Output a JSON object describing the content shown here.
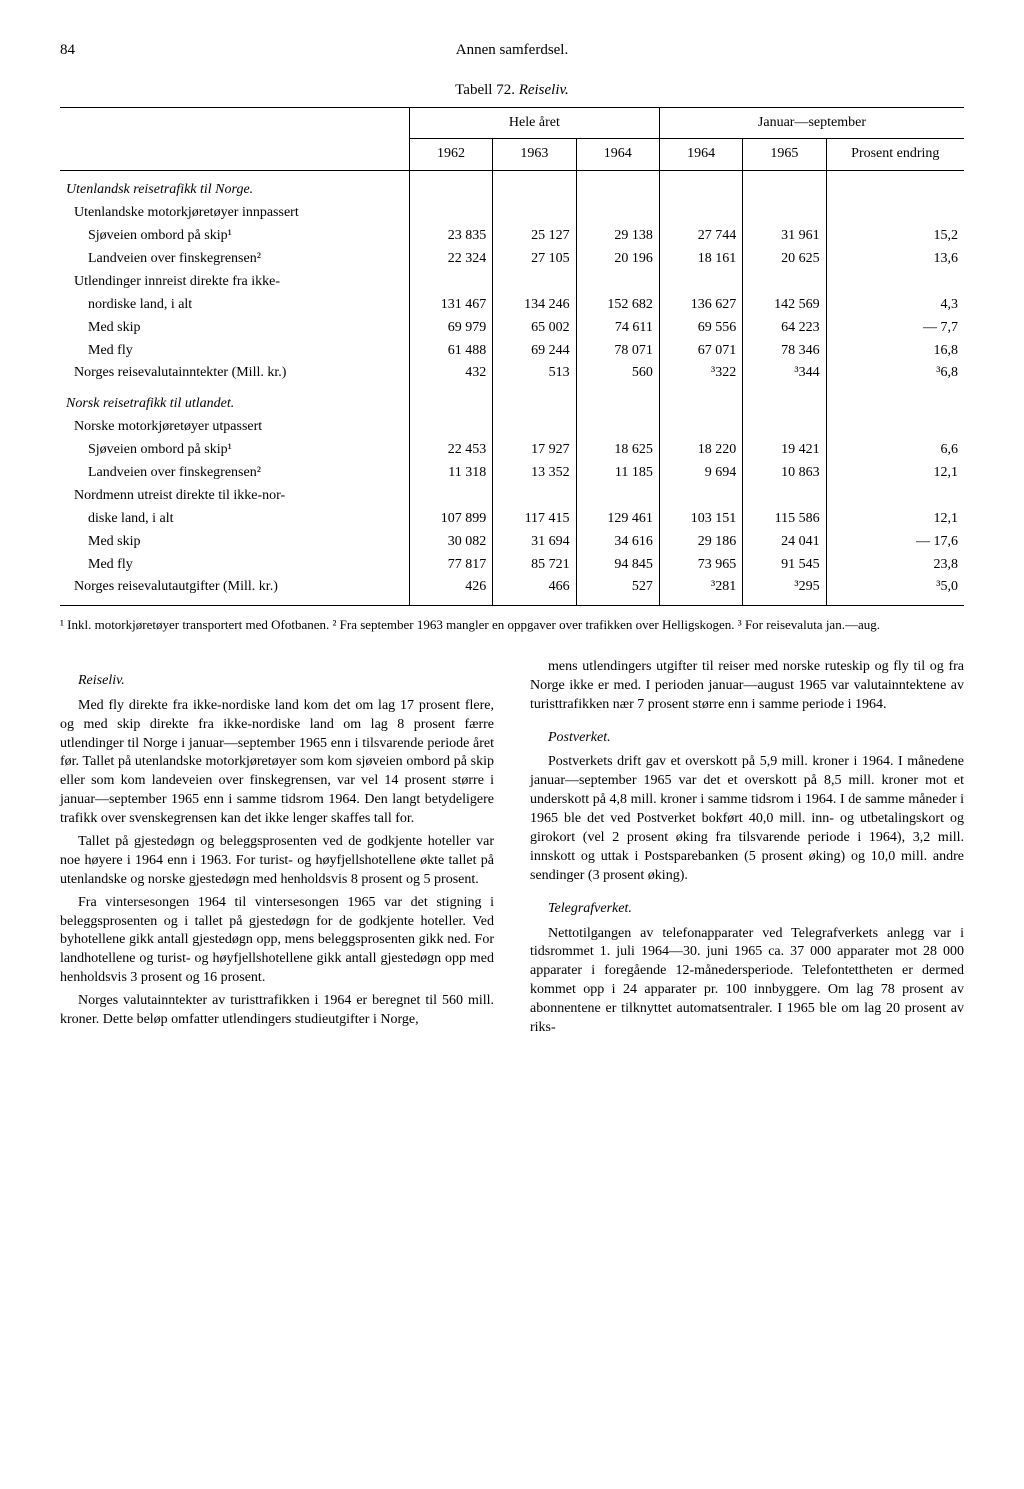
{
  "page": {
    "number": "84",
    "running_title": "Annen samferdsel."
  },
  "table": {
    "caption_prefix": "Tabell 72.",
    "caption_title": "Reiseliv.",
    "headers": {
      "group1": "Hele året",
      "group2": "Januar—september",
      "y1962": "1962",
      "y1963": "1963",
      "y1964a": "1964",
      "y1964b": "1964",
      "y1965": "1965",
      "prosent": "Prosent endring"
    },
    "section1": "Utenlandsk reisetrafikk til Norge.",
    "rows1": [
      {
        "label": "Utenlandske motorkjøretøyer innpassert",
        "indent": 1,
        "vals": [
          "",
          "",
          "",
          "",
          "",
          ""
        ]
      },
      {
        "label": "Sjøveien ombord på skip¹",
        "indent": 2,
        "vals": [
          "23 835",
          "25 127",
          "29 138",
          "27 744",
          "31 961",
          "15,2"
        ]
      },
      {
        "label": "Landveien over finskegrensen²",
        "indent": 2,
        "vals": [
          "22 324",
          "27 105",
          "20 196",
          "18 161",
          "20 625",
          "13,6"
        ]
      },
      {
        "label": "Utlendinger innreist direkte fra ikke-",
        "indent": 1,
        "vals": [
          "",
          "",
          "",
          "",
          "",
          ""
        ]
      },
      {
        "label": "nordiske land, i alt",
        "indent": 2,
        "vals": [
          "131 467",
          "134 246",
          "152 682",
          "136 627",
          "142 569",
          "4,3"
        ]
      },
      {
        "label": "Med skip",
        "indent": 2,
        "vals": [
          "69 979",
          "65 002",
          "74 611",
          "69 556",
          "64 223",
          "7,7"
        ],
        "neg": true
      },
      {
        "label": "Med fly",
        "indent": 2,
        "vals": [
          "61 488",
          "69 244",
          "78 071",
          "67 071",
          "78 346",
          "16,8"
        ]
      },
      {
        "label": "Norges reisevalutainntekter (Mill. kr.)",
        "indent": 1,
        "vals": [
          "432",
          "513",
          "560",
          "³322",
          "³344",
          "³6,8"
        ]
      }
    ],
    "section2": "Norsk reisetrafikk til utlandet.",
    "rows2": [
      {
        "label": "Norske motorkjøretøyer utpassert",
        "indent": 1,
        "vals": [
          "",
          "",
          "",
          "",
          "",
          ""
        ]
      },
      {
        "label": "Sjøveien ombord på skip¹",
        "indent": 2,
        "vals": [
          "22 453",
          "17 927",
          "18 625",
          "18 220",
          "19 421",
          "6,6"
        ]
      },
      {
        "label": "Landveien over finskegrensen²",
        "indent": 2,
        "vals": [
          "11 318",
          "13 352",
          "11 185",
          "9 694",
          "10 863",
          "12,1"
        ]
      },
      {
        "label": "Nordmenn utreist direkte til ikke-nor-",
        "indent": 1,
        "vals": [
          "",
          "",
          "",
          "",
          "",
          ""
        ]
      },
      {
        "label": "diske land, i alt",
        "indent": 2,
        "vals": [
          "107 899",
          "117 415",
          "129 461",
          "103 151",
          "115 586",
          "12,1"
        ]
      },
      {
        "label": "Med skip",
        "indent": 2,
        "vals": [
          "30 082",
          "31 694",
          "34 616",
          "29 186",
          "24 041",
          "17,6"
        ],
        "neg": true
      },
      {
        "label": "Med fly",
        "indent": 2,
        "vals": [
          "77 817",
          "85 721",
          "94 845",
          "73 965",
          "91 545",
          "23,8"
        ]
      },
      {
        "label": "Norges reisevalutautgifter   (Mill. kr.)",
        "indent": 1,
        "vals": [
          "426",
          "466",
          "527",
          "³281",
          "³295",
          "³5,0"
        ]
      }
    ],
    "footnote": "¹ Inkl. motorkjøretøyer transportert med Ofotbanen. ² Fra september 1963 mangler en oppgaver over trafikken over Helligskogen. ³ For reisevaluta jan.—aug."
  },
  "body": {
    "left": {
      "h1": "Reiseliv.",
      "p1": "Med fly direkte fra ikke-nordiske land kom det om lag 17 prosent flere, og med skip direkte fra ikke-nordiske land om lag 8 prosent færre utlendinger til Norge i januar—september 1965 enn i tilsvarende periode året før. Tallet på utenlandske motorkjøretøyer som kom sjøveien ombord på skip eller som kom landeveien over finskegrensen, var vel 14 prosent større i januar—september 1965 enn i samme tidsrom 1964. Den langt betydeligere trafikk over svenskegrensen kan det ikke lenger skaffes tall for.",
      "p2": "Tallet på gjestedøgn og beleggsprosenten ved de godkjente hoteller var noe høyere i 1964 enn i 1963. For turist- og høyfjellshotellene økte tallet på utenlandske og norske gjestedøgn med henholdsvis 8 prosent og 5 prosent.",
      "p3": "Fra vintersesongen 1964 til vintersesongen 1965 var det stigning i beleggsprosenten og i tallet på gjestedøgn for de godkjente hoteller. Ved byhotellene gikk antall gjestedøgn opp, mens beleggsprosenten gikk ned. For landhotellene og turist- og høyfjellshotellene gikk antall gjestedøgn opp med henholdsvis 3 prosent og 16 prosent.",
      "p4": "Norges valutainntekter av turisttrafikken i 1964 er beregnet til 560 mill. kroner. Dette beløp omfatter utlendingers studieutgifter i Norge,"
    },
    "right": {
      "p1": "mens utlendingers utgifter til reiser med norske ruteskip og fly til og fra Norge ikke er med. I perioden januar—august 1965 var valutainntektene av turisttrafikken nær 7 prosent større enn i samme periode i 1964.",
      "h2": "Postverket.",
      "p2": "Postverkets drift gav et overskott på 5,9 mill. kroner i 1964. I månedene januar—september 1965 var det et overskott på 8,5 mill. kroner mot et underskott på 4,8 mill. kroner i samme tidsrom i 1964. I de samme måneder i 1965 ble det ved Postverket bokført 40,0 mill. inn- og utbetalingskort og girokort (vel 2 prosent øking fra tilsvarende periode i 1964), 3,2 mill. innskott og uttak i Postsparebanken (5 prosent øking) og 10,0 mill. andre sendinger (3 prosent øking).",
      "h3": "Telegrafverket.",
      "p3": "Nettotilgangen av telefonapparater ved Telegrafverkets anlegg var i tidsrommet 1. juli 1964—30. juni 1965 ca. 37 000 apparater mot 28 000 apparater i foregående 12-månedersperiode. Telefontettheten er dermed kommet opp i 24 apparater pr. 100 innbyggere. Om lag 78 prosent av abonnentene er tilknyttet automatsentraler. I 1965 ble om lag 20 prosent av riks-"
    }
  }
}
